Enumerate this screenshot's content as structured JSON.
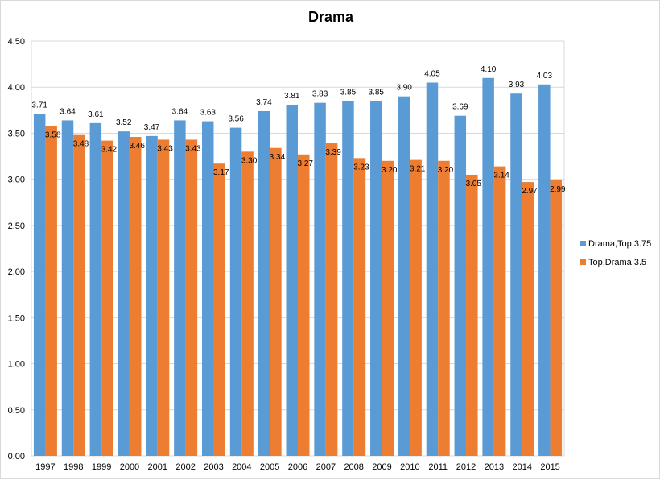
{
  "chart_data": {
    "type": "bar",
    "title": "Drama",
    "xlabel": "",
    "ylabel": "",
    "ylim": [
      0,
      4.5
    ],
    "yticks": [
      "0.00",
      "0.50",
      "1.00",
      "1.50",
      "2.00",
      "2.50",
      "3.00",
      "3.50",
      "4.00",
      "4.50"
    ],
    "categories": [
      "1997",
      "1998",
      "1999",
      "2000",
      "2001",
      "2002",
      "2003",
      "2004",
      "2005",
      "2006",
      "2007",
      "2008",
      "2009",
      "2010",
      "2011",
      "2012",
      "2013",
      "2014",
      "2015"
    ],
    "series": [
      {
        "name": "Drama,Top 3.75",
        "color": "#5b9bd5",
        "values": [
          3.71,
          3.64,
          3.61,
          3.52,
          3.47,
          3.64,
          3.63,
          3.56,
          3.74,
          3.81,
          3.83,
          3.85,
          3.85,
          3.9,
          4.05,
          3.69,
          4.1,
          3.93,
          4.03
        ]
      },
      {
        "name": "Top,Drama 3.5",
        "color": "#ed7d31",
        "values": [
          3.58,
          3.48,
          3.42,
          3.46,
          3.43,
          3.43,
          3.17,
          3.3,
          3.34,
          3.27,
          3.39,
          3.23,
          3.2,
          3.21,
          3.2,
          3.05,
          3.14,
          2.97,
          2.99
        ]
      }
    ],
    "grid": true,
    "legend_position": "right"
  }
}
